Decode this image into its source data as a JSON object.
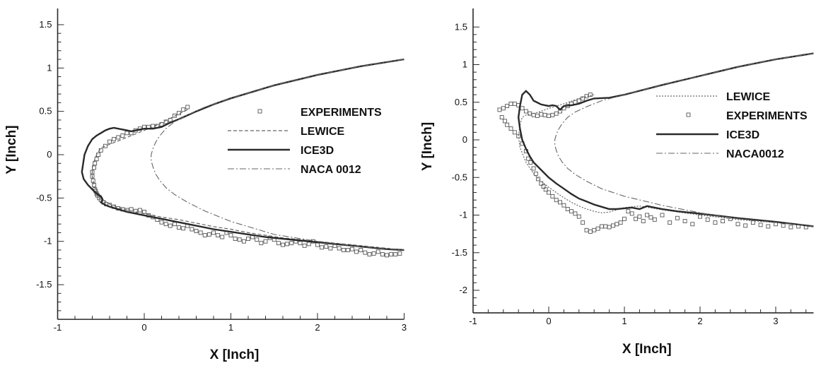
{
  "chart_data": [
    {
      "type": "line",
      "xlabel": "X [Inch]",
      "ylabel": "Y [Inch]",
      "xlim": [
        -1,
        3
      ],
      "ylim": [
        -1.9,
        1.5
      ],
      "xticks": [
        -1,
        0,
        1,
        2,
        3
      ],
      "xtick_labels": [
        "-1",
        "0",
        "1",
        "2",
        "3"
      ],
      "yticks": [
        1.5,
        1,
        0.5,
        0,
        -0.5,
        -1,
        -1.5
      ],
      "ytick_labels": [
        "1.5",
        "1",
        "0.5",
        "0",
        "-0.5",
        "-1",
        "-1.5"
      ],
      "legend_position": "right",
      "series": [
        {
          "name": "EXPERIMENTS",
          "style": "squares",
          "x": [
            0.5,
            0.45,
            0.4,
            0.35,
            0.3,
            0.25,
            0.2,
            0.15,
            0.1,
            0.05,
            0.0,
            -0.05,
            -0.1,
            -0.15,
            -0.2,
            -0.25,
            -0.3,
            -0.35,
            -0.4,
            -0.45,
            -0.5,
            -0.53,
            -0.55,
            -0.57,
            -0.58,
            -0.6,
            -0.6,
            -0.59,
            -0.58,
            -0.57,
            -0.56,
            -0.55,
            -0.54,
            -0.52,
            -0.5,
            -0.47,
            -0.44,
            -0.4,
            -0.35,
            -0.3,
            -0.25,
            -0.2,
            -0.15,
            -0.1,
            -0.05,
            0.0,
            0.05,
            0.1,
            0.15,
            0.2,
            0.25,
            0.3,
            0.35,
            0.4,
            0.45,
            0.5,
            0.55,
            0.6,
            0.65,
            0.7,
            0.75,
            0.8,
            0.85,
            0.9,
            0.95,
            1.0,
            1.05,
            1.1,
            1.15,
            1.2,
            1.25,
            1.3,
            1.35,
            1.4,
            1.45,
            1.5,
            1.55,
            1.6,
            1.65,
            1.7,
            1.75,
            1.8,
            1.85,
            1.9,
            1.95,
            2.0,
            2.05,
            2.1,
            2.15,
            2.2,
            2.25,
            2.3,
            2.35,
            2.4,
            2.45,
            2.5,
            2.55,
            2.6,
            2.65,
            2.7,
            2.75,
            2.8,
            2.85,
            2.9,
            2.95
          ],
          "y": [
            0.55,
            0.52,
            0.48,
            0.45,
            0.4,
            0.38,
            0.35,
            0.33,
            0.33,
            0.32,
            0.32,
            0.3,
            0.28,
            0.25,
            0.25,
            0.22,
            0.2,
            0.18,
            0.15,
            0.1,
            0.05,
            0.0,
            -0.05,
            -0.1,
            -0.15,
            -0.2,
            -0.25,
            -0.3,
            -0.35,
            -0.4,
            -0.42,
            -0.45,
            -0.47,
            -0.5,
            -0.52,
            -0.55,
            -0.57,
            -0.58,
            -0.6,
            -0.62,
            -0.63,
            -0.64,
            -0.63,
            -0.65,
            -0.64,
            -0.66,
            -0.7,
            -0.72,
            -0.75,
            -0.78,
            -0.8,
            -0.82,
            -0.8,
            -0.84,
            -0.85,
            -0.82,
            -0.86,
            -0.88,
            -0.9,
            -0.93,
            -0.92,
            -0.9,
            -0.93,
            -0.95,
            -0.9,
            -0.93,
            -0.97,
            -0.98,
            -1.0,
            -0.97,
            -0.95,
            -0.98,
            -1.02,
            -1.0,
            -0.96,
            -0.98,
            -1.02,
            -1.04,
            -1.03,
            -1.02,
            -1.0,
            -1.02,
            -1.05,
            -1.03,
            -1.0,
            -1.04,
            -1.07,
            -1.06,
            -1.08,
            -1.05,
            -1.08,
            -1.1,
            -1.1,
            -1.09,
            -1.12,
            -1.1,
            -1.13,
            -1.15,
            -1.14,
            -1.12,
            -1.15,
            -1.16,
            -1.15,
            -1.15,
            -1.14
          ]
        },
        {
          "name": "LEWICE",
          "style": "dashed",
          "x": [
            0.5,
            0.4,
            0.3,
            0.2,
            0.1,
            0.0,
            -0.1,
            -0.2,
            -0.3,
            -0.4,
            -0.5,
            -0.55,
            -0.58,
            -0.6,
            -0.6,
            -0.58,
            -0.55,
            -0.5,
            -0.45,
            -0.4,
            -0.3,
            -0.2,
            -0.1,
            0.0,
            0.1,
            0.2,
            0.4,
            0.6,
            0.8,
            1.0,
            1.2,
            1.4,
            1.6,
            1.8,
            2.0,
            2.2,
            2.4,
            2.6,
            2.8,
            3.0
          ],
          "y": [
            0.52,
            0.47,
            0.42,
            0.37,
            0.32,
            0.28,
            0.24,
            0.2,
            0.16,
            0.12,
            0.08,
            0.0,
            -0.08,
            -0.15,
            -0.25,
            -0.35,
            -0.43,
            -0.5,
            -0.54,
            -0.57,
            -0.61,
            -0.64,
            -0.66,
            -0.68,
            -0.7,
            -0.72,
            -0.75,
            -0.79,
            -0.83,
            -0.86,
            -0.9,
            -0.93,
            -0.96,
            -0.98,
            -1.0,
            -1.02,
            -1.04,
            -1.06,
            -1.08,
            -1.1
          ]
        },
        {
          "name": "ICE3D",
          "style": "solid",
          "x": [
            3.0,
            2.5,
            2.0,
            1.5,
            1.0,
            0.8,
            0.6,
            0.4,
            0.3,
            0.2,
            0.1,
            0.0,
            -0.1,
            -0.15,
            -0.2,
            -0.3,
            -0.35,
            -0.4,
            -0.45,
            -0.5,
            -0.55,
            -0.6,
            -0.65,
            -0.67,
            -0.69,
            -0.72,
            -0.7,
            -0.65,
            -0.6,
            -0.55,
            -0.5,
            -0.48,
            -0.5,
            -0.45,
            -0.4,
            -0.3,
            -0.2,
            -0.1,
            0.0,
            0.2,
            0.4,
            0.6,
            0.8,
            1.0,
            1.2,
            1.4,
            1.6,
            1.8,
            2.0,
            2.2,
            2.4,
            2.6,
            2.8,
            3.0
          ],
          "y": [
            1.1,
            1.02,
            0.92,
            0.8,
            0.65,
            0.58,
            0.5,
            0.41,
            0.37,
            0.32,
            0.3,
            0.3,
            0.28,
            0.27,
            0.28,
            0.3,
            0.31,
            0.3,
            0.28,
            0.25,
            0.22,
            0.18,
            0.1,
            0.05,
            0.0,
            -0.2,
            -0.28,
            -0.35,
            -0.4,
            -0.45,
            -0.48,
            -0.52,
            -0.55,
            -0.58,
            -0.6,
            -0.63,
            -0.66,
            -0.68,
            -0.7,
            -0.74,
            -0.78,
            -0.82,
            -0.86,
            -0.89,
            -0.92,
            -0.95,
            -0.97,
            -0.99,
            -1.01,
            -1.03,
            -1.05,
            -1.07,
            -1.09,
            -1.1
          ]
        },
        {
          "name": "NACA 0012",
          "style": "dashdot",
          "x": [
            3.0,
            2.5,
            2.0,
            1.5,
            1.0,
            0.7,
            0.5,
            0.35,
            0.25,
            0.18,
            0.13,
            0.1,
            0.08,
            0.08,
            0.1,
            0.13,
            0.18,
            0.25,
            0.35,
            0.5,
            0.7,
            1.0,
            1.5,
            2.0,
            2.5,
            3.0
          ],
          "y": [
            1.1,
            1.02,
            0.92,
            0.8,
            0.65,
            0.55,
            0.46,
            0.38,
            0.3,
            0.22,
            0.14,
            0.07,
            0.0,
            -0.07,
            -0.14,
            -0.22,
            -0.3,
            -0.38,
            -0.46,
            -0.55,
            -0.65,
            -0.77,
            -0.92,
            -1.0,
            -1.06,
            -1.1
          ]
        }
      ]
    },
    {
      "type": "line",
      "xlabel": "X [Inch]",
      "ylabel": "Y [Inch]",
      "xlim": [
        -1,
        3.5
      ],
      "ylim": [
        -2.3,
        1.5
      ],
      "xticks": [
        -1,
        0,
        1,
        2,
        3
      ],
      "xtick_labels": [
        "-1",
        "0",
        "1",
        "2",
        "3"
      ],
      "yticks": [
        1.5,
        1,
        0.5,
        0,
        -0.5,
        -1,
        -1.5,
        -2
      ],
      "ytick_labels": [
        "1.5",
        "1",
        "0.5",
        "0",
        "-0.5",
        "-1",
        "-1.5",
        "-2"
      ],
      "legend_position": "right",
      "series": [
        {
          "name": "LEWICE",
          "style": "dotted",
          "x": [
            0.6,
            0.4,
            0.2,
            0.0,
            -0.1,
            -0.2,
            -0.3,
            -0.35,
            -0.38,
            -0.4,
            -0.38,
            -0.3,
            -0.2,
            -0.1,
            0.0,
            0.1,
            0.2,
            0.3,
            0.4,
            0.5,
            0.6,
            0.7,
            0.8,
            0.9,
            1.0,
            1.2,
            1.5,
            2.0,
            2.5,
            3.0,
            3.5
          ],
          "y": [
            0.6,
            0.55,
            0.48,
            0.42,
            0.38,
            0.35,
            0.33,
            0.3,
            0.2,
            0.05,
            -0.1,
            -0.3,
            -0.45,
            -0.55,
            -0.63,
            -0.7,
            -0.77,
            -0.83,
            -0.88,
            -0.92,
            -0.95,
            -0.97,
            -0.96,
            -0.93,
            -0.9,
            -0.88,
            -0.93,
            -1.0,
            -1.06,
            -1.1,
            -1.15
          ]
        },
        {
          "name": "EXPERIMENTS",
          "style": "squares",
          "x": [
            0.55,
            0.5,
            0.45,
            0.4,
            0.35,
            0.3,
            0.25,
            0.2,
            0.15,
            0.1,
            0.05,
            0.0,
            -0.05,
            -0.1,
            -0.15,
            -0.2,
            -0.25,
            -0.3,
            -0.35,
            -0.4,
            -0.45,
            -0.5,
            -0.55,
            -0.6,
            -0.65,
            -0.62,
            -0.58,
            -0.55,
            -0.5,
            -0.45,
            -0.4,
            -0.35,
            -0.3,
            -0.27,
            -0.24,
            -0.2,
            -0.17,
            -0.14,
            -0.1,
            -0.07,
            -0.04,
            0.0,
            0.05,
            0.1,
            0.15,
            0.2,
            0.25,
            0.3,
            0.35,
            0.4,
            0.45,
            0.5,
            0.55,
            0.6,
            0.65,
            0.7,
            0.75,
            0.8,
            0.85,
            0.9,
            0.95,
            1.0,
            1.05,
            1.1,
            1.15,
            1.2,
            1.25,
            1.3,
            1.35,
            1.4,
            1.5,
            1.6,
            1.7,
            1.8,
            1.9,
            2.0,
            2.1,
            2.2,
            2.3,
            2.4,
            2.5,
            2.6,
            2.7,
            2.8,
            2.9,
            3.0,
            3.1,
            3.2,
            3.3,
            3.4
          ],
          "y": [
            0.6,
            0.58,
            0.55,
            0.52,
            0.5,
            0.48,
            0.45,
            0.42,
            0.38,
            0.35,
            0.33,
            0.32,
            0.33,
            0.34,
            0.32,
            0.33,
            0.35,
            0.38,
            0.42,
            0.46,
            0.48,
            0.48,
            0.45,
            0.42,
            0.4,
            0.3,
            0.25,
            0.2,
            0.15,
            0.1,
            0.05,
            -0.05,
            -0.15,
            -0.25,
            -0.3,
            -0.38,
            -0.45,
            -0.52,
            -0.58,
            -0.62,
            -0.66,
            -0.7,
            -0.75,
            -0.8,
            -0.83,
            -0.87,
            -0.92,
            -0.95,
            -0.98,
            -1.02,
            -1.1,
            -1.2,
            -1.22,
            -1.2,
            -1.18,
            -1.15,
            -1.15,
            -1.16,
            -1.14,
            -1.12,
            -1.1,
            -1.05,
            -0.95,
            -0.98,
            -1.05,
            -1.02,
            -1.08,
            -1.0,
            -1.03,
            -1.06,
            -1.0,
            -1.1,
            -1.04,
            -1.08,
            -1.12,
            -1.02,
            -1.06,
            -1.1,
            -1.08,
            -1.05,
            -1.12,
            -1.14,
            -1.1,
            -1.13,
            -1.15,
            -1.12,
            -1.14,
            -1.16,
            -1.15,
            -1.16
          ]
        },
        {
          "name": "ICE3D",
          "style": "solid",
          "x": [
            3.5,
            3.0,
            2.5,
            2.0,
            1.5,
            1.0,
            0.8,
            0.6,
            0.5,
            0.4,
            0.3,
            0.2,
            0.15,
            0.1,
            0.05,
            0.0,
            -0.1,
            -0.2,
            -0.25,
            -0.3,
            -0.35,
            -0.38,
            -0.4,
            -0.38,
            -0.35,
            -0.3,
            -0.25,
            -0.2,
            -0.1,
            0.0,
            0.1,
            0.2,
            0.3,
            0.4,
            0.5,
            0.6,
            0.7,
            0.8,
            0.9,
            1.0,
            1.1,
            1.2,
            1.3,
            1.4,
            1.5,
            1.7,
            2.0,
            2.5,
            3.0,
            3.5
          ],
          "y": [
            1.15,
            1.07,
            0.97,
            0.85,
            0.73,
            0.6,
            0.56,
            0.55,
            0.52,
            0.48,
            0.46,
            0.45,
            0.4,
            0.45,
            0.46,
            0.45,
            0.47,
            0.52,
            0.6,
            0.65,
            0.6,
            0.45,
            0.3,
            0.15,
            0.0,
            -0.12,
            -0.22,
            -0.3,
            -0.4,
            -0.5,
            -0.58,
            -0.65,
            -0.72,
            -0.78,
            -0.82,
            -0.86,
            -0.89,
            -0.92,
            -0.92,
            -0.91,
            -0.9,
            -0.92,
            -0.88,
            -0.9,
            -0.92,
            -0.95,
            -0.98,
            -1.04,
            -1.09,
            -1.15
          ]
        },
        {
          "name": "NACA0012",
          "style": "dashdot",
          "x": [
            3.5,
            3.0,
            2.5,
            2.0,
            1.5,
            1.0,
            0.7,
            0.5,
            0.35,
            0.25,
            0.18,
            0.13,
            0.1,
            0.08,
            0.08,
            0.1,
            0.13,
            0.18,
            0.25,
            0.35,
            0.5,
            0.7,
            1.0,
            1.5,
            2.0,
            2.5,
            3.0,
            3.5
          ],
          "y": [
            1.15,
            1.07,
            0.97,
            0.85,
            0.73,
            0.6,
            0.52,
            0.44,
            0.37,
            0.3,
            0.22,
            0.14,
            0.07,
            0.0,
            -0.07,
            -0.14,
            -0.22,
            -0.3,
            -0.38,
            -0.46,
            -0.55,
            -0.65,
            -0.75,
            -0.87,
            -0.97,
            -1.05,
            -1.1,
            -1.15
          ]
        }
      ]
    }
  ],
  "colors": {
    "ink": "#2a2a2a",
    "marker": "#555555"
  }
}
